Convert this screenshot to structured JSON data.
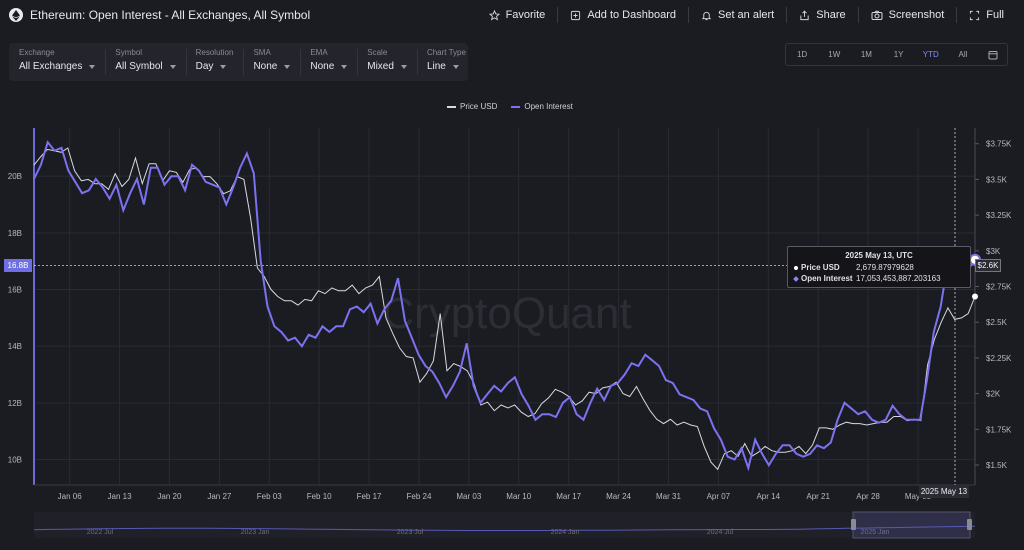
{
  "header": {
    "title": "Ethereum: Open Interest - All Exchanges, All Symbol",
    "actions": [
      {
        "label": "Favorite",
        "icon": "star-icon"
      },
      {
        "label": "Add to Dashboard",
        "icon": "plus-square-icon"
      },
      {
        "label": "Set an alert",
        "icon": "bell-icon"
      },
      {
        "label": "Share",
        "icon": "share-icon"
      },
      {
        "label": "Screenshot",
        "icon": "camera-icon"
      },
      {
        "label": "Full",
        "icon": "expand-icon"
      }
    ]
  },
  "controls": [
    {
      "label": "Exchange",
      "value": "All Exchanges"
    },
    {
      "label": "Symbol",
      "value": "All Symbol"
    },
    {
      "label": "Resolution",
      "value": "Day"
    },
    {
      "label": "SMA",
      "value": "None"
    },
    {
      "label": "EMA",
      "value": "None"
    },
    {
      "label": "Scale",
      "value": "Mixed"
    },
    {
      "label": "Chart Type",
      "value": "Line"
    }
  ],
  "ranges": {
    "options": [
      "1D",
      "1W",
      "1M",
      "1Y",
      "YTD",
      "All"
    ],
    "active": "YTD"
  },
  "colors": {
    "price": "#d9d9e2",
    "oi": "#7b72f0",
    "grid": "#2a2a33",
    "axis_text": "#b8b8c4"
  },
  "tooltip": {
    "date": "2025 May 13, UTC",
    "price_label": "Price USD",
    "price_value": "2,679.87979628",
    "oi_label": "Open Interest",
    "oi_value": "17,053,453,887.203163"
  },
  "crosshair": {
    "left_label": "16.8B",
    "right_label": "$2.6K",
    "date_label": "2025 May 13"
  },
  "watermark": "CryptoQuant",
  "navigator": {
    "labels": [
      "2022 Jul",
      "2023 Jan",
      "2023 Jul",
      "2024 Jan",
      "2024 Jul",
      "2025 Jan"
    ]
  },
  "chart_data": {
    "type": "line",
    "title": "Ethereum: Open Interest - All Exchanges, All Symbol",
    "x_labels": [
      "Jan 06",
      "Jan 13",
      "Jan 20",
      "Jan 27",
      "Feb 03",
      "Feb 10",
      "Feb 17",
      "Feb 24",
      "Mar 03",
      "Mar 10",
      "Mar 17",
      "Mar 24",
      "Mar 31",
      "Apr 07",
      "Apr 14",
      "Apr 21",
      "Apr 28",
      "May 05"
    ],
    "x_range_days": [
      1,
      133
    ],
    "left_axis": {
      "name": "Open Interest",
      "ticks": [
        "10B",
        "12B",
        "14B",
        "16B",
        "18B",
        "20B"
      ],
      "range": [
        9.1,
        21.7
      ]
    },
    "right_axis": {
      "name": "Price USD",
      "ticks": [
        "$1.5K",
        "$1.75K",
        "$2K",
        "$2.25K",
        "$2.5K",
        "$2.75K",
        "$3K",
        "$3.25K",
        "$3.5K",
        "$3.75K"
      ],
      "range": [
        1.36,
        3.86
      ]
    },
    "legend": [
      "Price USD",
      "Open Interest"
    ],
    "series": [
      {
        "name": "Open Interest",
        "axis": "left",
        "unit": "B USD",
        "values": [
          19.9,
          20.4,
          21.2,
          20.9,
          21.0,
          20.2,
          19.8,
          19.4,
          19.5,
          19.9,
          19.6,
          19.2,
          19.7,
          18.8,
          19.4,
          19.9,
          19.0,
          20.3,
          20.3,
          19.7,
          20.0,
          20.0,
          19.5,
          20.4,
          20.2,
          19.8,
          19.7,
          19.6,
          19.0,
          19.6,
          20.3,
          20.8,
          20.1,
          17.0,
          15.4,
          14.7,
          14.5,
          14.2,
          14.3,
          14.0,
          14.4,
          14.3,
          14.7,
          14.5,
          14.7,
          14.7,
          15.3,
          15.4,
          15.2,
          15.5,
          14.8,
          15.3,
          15.6,
          16.4,
          14.9,
          14.3,
          13.7,
          13.3,
          13.1,
          12.7,
          12.2,
          12.6,
          13.1,
          14.1,
          12.6,
          12.0,
          12.3,
          12.6,
          12.4,
          12.7,
          12.9,
          12.3,
          11.9,
          11.4,
          11.6,
          11.6,
          11.5,
          12.0,
          12.2,
          11.6,
          11.4,
          12.0,
          12.5,
          12.1,
          12.6,
          12.7,
          13.0,
          13.4,
          13.3,
          13.7,
          13.5,
          13.3,
          12.8,
          12.7,
          12.3,
          12.2,
          12.1,
          11.8,
          11.7,
          11.1,
          10.7,
          10.1,
          10.0,
          10.4,
          9.7,
          10.7,
          10.2,
          9.8,
          10.2,
          10.5,
          10.5,
          10.2,
          10.1,
          10.2,
          10.5,
          10.4,
          10.6,
          11.4,
          12.0,
          11.8,
          11.6,
          11.7,
          11.4,
          11.3,
          11.4,
          11.9,
          11.6,
          11.4,
          11.4,
          11.4,
          12.8,
          14.5,
          15.4,
          16.9,
          16.3,
          16.5,
          16.7,
          17.05
        ]
      },
      {
        "name": "Price USD",
        "axis": "right",
        "unit": "USD",
        "values": [
          3600,
          3660,
          3710,
          3700,
          3690,
          3720,
          3560,
          3490,
          3500,
          3470,
          3470,
          3430,
          3540,
          3450,
          3500,
          3650,
          3470,
          3610,
          3610,
          3490,
          3560,
          3550,
          3480,
          3570,
          3580,
          3520,
          3520,
          3470,
          3400,
          3420,
          3520,
          3500,
          3230,
          2880,
          2820,
          2730,
          2680,
          2650,
          2650,
          2620,
          2660,
          2650,
          2720,
          2700,
          2740,
          2720,
          2720,
          2760,
          2700,
          2740,
          2760,
          2820,
          2530,
          2420,
          2320,
          2260,
          2250,
          2080,
          2140,
          2230,
          2560,
          2160,
          2210,
          2190,
          2160,
          2070,
          1920,
          1940,
          1880,
          1920,
          1900,
          1920,
          1870,
          1840,
          1860,
          1930,
          1970,
          2030,
          2010,
          1980,
          1920,
          1950,
          2010,
          2000,
          2040,
          2050,
          2080,
          2000,
          1980,
          2050,
          1960,
          1880,
          1820,
          1790,
          1820,
          1780,
          1800,
          1780,
          1770,
          1630,
          1520,
          1470,
          1580,
          1600,
          1560,
          1650,
          1560,
          1590,
          1630,
          1600,
          1590,
          1590,
          1600,
          1630,
          1580,
          1640,
          1760,
          1760,
          1750,
          1780,
          1800,
          1790,
          1790,
          1780,
          1790,
          1800,
          1800,
          1840,
          1840,
          1810,
          1820,
          1810,
          2200,
          2380,
          2500,
          2600,
          2520,
          2530,
          2560,
          2680
        ]
      }
    ]
  }
}
